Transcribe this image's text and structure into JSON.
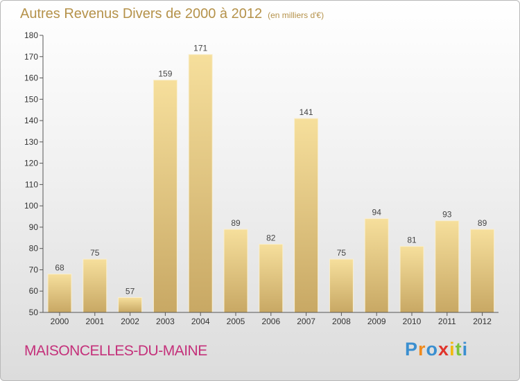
{
  "title": "Autres Revenus Divers de 2000 à 2012",
  "unit": "(en milliers d'€)",
  "commune": "MAISONCELLES-DU-MAINE",
  "logo": {
    "letters": [
      "P",
      "r",
      "o",
      "x",
      "i",
      "t",
      "i"
    ],
    "colors": [
      "#3a8fd0",
      "#f08a1c",
      "#3a8fd0",
      "#e0342c",
      "#f2b90f",
      "#7cc33b",
      "#3a8fd0"
    ]
  },
  "colors": {
    "bar_light": "#f6df9c",
    "bar_dark": "#c8a864",
    "title": "#b5924a",
    "commune": "#c4307a"
  },
  "chart_data": {
    "type": "bar",
    "categories": [
      "2000",
      "2001",
      "2002",
      "2003",
      "2004",
      "2005",
      "2006",
      "2007",
      "2008",
      "2009",
      "2010",
      "2011",
      "2012"
    ],
    "values": [
      68,
      75,
      57,
      159,
      171,
      89,
      82,
      141,
      75,
      94,
      81,
      93,
      89
    ],
    "ylim": [
      50,
      180
    ],
    "yticks": [
      50,
      60,
      70,
      80,
      90,
      100,
      110,
      120,
      130,
      140,
      150,
      160,
      170,
      180
    ],
    "data_labels": true,
    "grid": false,
    "legend": "none"
  }
}
